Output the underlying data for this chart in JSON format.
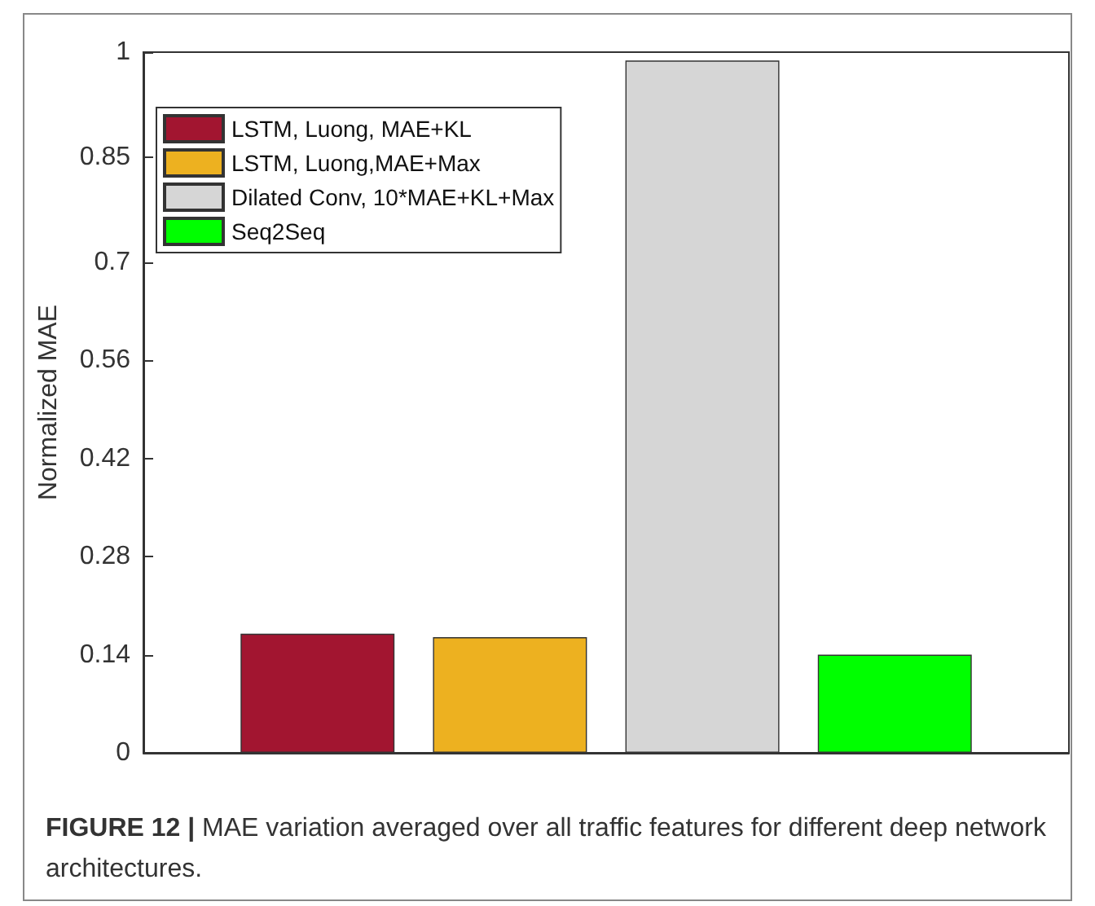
{
  "chart_data": {
    "type": "bar",
    "ylabel": "Normalized MAE",
    "categories": [
      null
    ],
    "series": [
      {
        "name": "LSTM, Luong, MAE+KL",
        "color": "#a21530",
        "values": [
          0.17
        ]
      },
      {
        "name": "LSTM, Luong,MAE+Max",
        "color": "#edb120",
        "values": [
          0.165
        ]
      },
      {
        "name": "Dilated Conv, 10*MAE+KL+Max",
        "color": "#d6d6d6",
        "values": [
          0.988
        ]
      },
      {
        "name": "Seq2Seq",
        "color": "#00ff00",
        "values": [
          0.14
        ]
      }
    ],
    "ylim": [
      0,
      1
    ],
    "yticks": [
      0,
      0.14,
      0.28,
      0.42,
      0.56,
      0.7,
      0.85,
      1
    ],
    "grid": false,
    "legend": "top left",
    "annotations": [
      "FIGURE 12 | MAE variation averaged over all traffic features for different deep network architectures."
    ]
  }
}
